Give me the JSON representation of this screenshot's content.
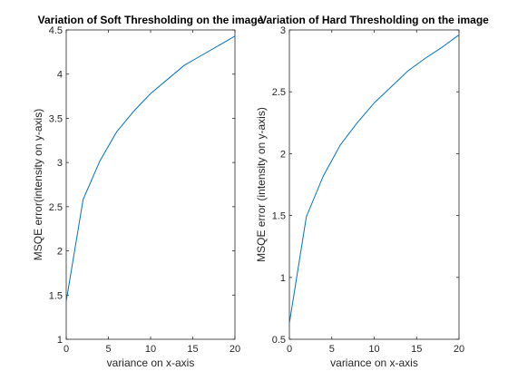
{
  "chart_data": [
    {
      "type": "line",
      "title": "Variation of Soft Thresholding on the image",
      "xlabel": "variance on x-axis",
      "ylabel": "MSQE error(intensity on y-axis)",
      "xlim": [
        0,
        20
      ],
      "ylim": [
        1,
        4.5
      ],
      "xticks": [
        0,
        5,
        10,
        15,
        20
      ],
      "yticks": [
        1,
        1.5,
        2,
        2.5,
        3,
        3.5,
        4,
        4.5
      ],
      "xtick_labels": [
        "0",
        "5",
        "10",
        "15",
        "20"
      ],
      "ytick_labels": [
        "1",
        "1.5",
        "2",
        "2.5",
        "3",
        "3.5",
        "4",
        "4.5"
      ],
      "grid": false,
      "series": [
        {
          "color": "#0072BD",
          "x": [
            0,
            2,
            4,
            6,
            8,
            10,
            12,
            14,
            16,
            18,
            20
          ],
          "y": [
            1.43,
            2.58,
            3.02,
            3.35,
            3.58,
            3.78,
            3.94,
            4.1,
            4.21,
            4.32,
            4.43
          ]
        }
      ]
    },
    {
      "type": "line",
      "title": "Variation of Hard Thresholding on the image",
      "xlabel": "variance on x-axis",
      "ylabel": "MSQE error (intensity on y-axis)",
      "xlim": [
        0,
        20
      ],
      "ylim": [
        0.5,
        3
      ],
      "xticks": [
        0,
        5,
        10,
        15,
        20
      ],
      "yticks": [
        0.5,
        1,
        1.5,
        2,
        2.5,
        3
      ],
      "xtick_labels": [
        "0",
        "5",
        "10",
        "15",
        "20"
      ],
      "ytick_labels": [
        "0.5",
        "1",
        "1.5",
        "2",
        "2.5",
        "3"
      ],
      "grid": false,
      "series": [
        {
          "color": "#0072BD",
          "x": [
            0,
            2,
            4,
            6,
            8,
            10,
            12,
            14,
            16,
            18,
            20
          ],
          "y": [
            0.63,
            1.49,
            1.82,
            2.07,
            2.25,
            2.41,
            2.54,
            2.67,
            2.77,
            2.86,
            2.96
          ]
        }
      ]
    }
  ]
}
